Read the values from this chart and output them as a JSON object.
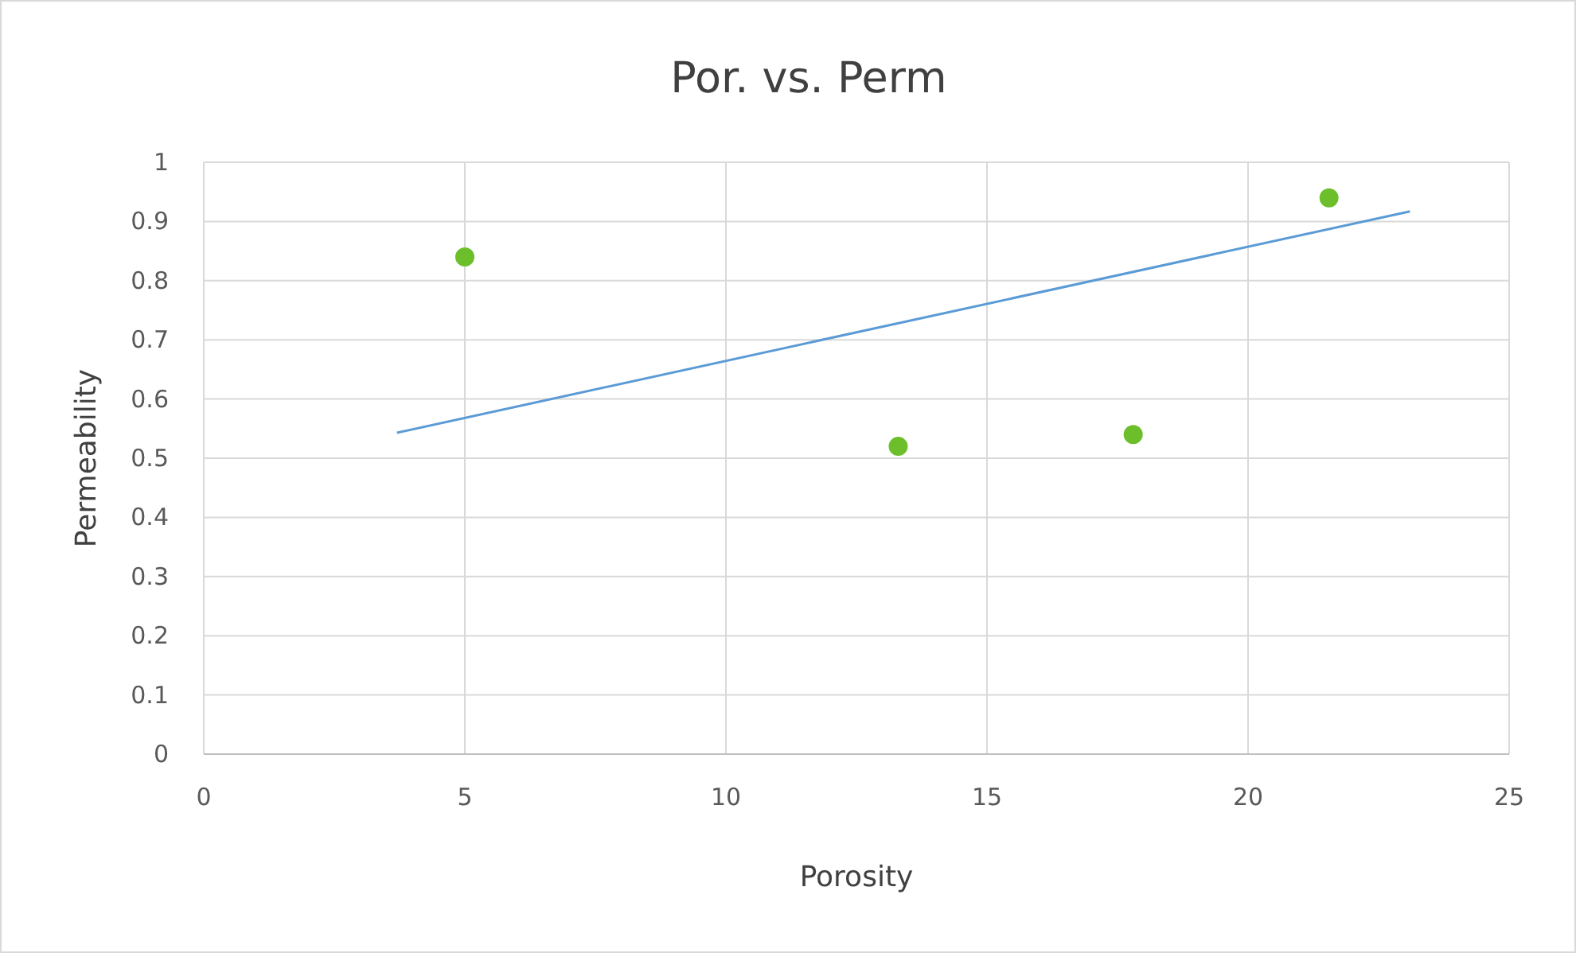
{
  "chart_data": {
    "type": "scatter",
    "title": "Por. vs. Perm",
    "xlabel": "Porosity",
    "ylabel": "Permeability",
    "xlim": [
      0,
      25
    ],
    "xticks": [
      0,
      5,
      10,
      15,
      20,
      25
    ],
    "ylim": [
      0,
      1
    ],
    "yticks": [
      0,
      {
        "value": 0.1,
        "label": "0.1"
      },
      {
        "value": 0.2,
        "label": "0.2"
      },
      {
        "value": 0.3,
        "label": "0.3"
      },
      {
        "value": 0.4,
        "label": "0.4"
      },
      {
        "value": 0.5,
        "label": "0.5"
      },
      {
        "value": 0.6,
        "label": "0.6"
      },
      {
        "value": 0.7,
        "label": "0.7"
      },
      {
        "value": 0.8,
        "label": "0.8"
      },
      {
        "value": 0.9,
        "label": "0.9"
      },
      1
    ],
    "grid": true,
    "marker": "circle",
    "series": [
      {
        "color": "#6cbf2a",
        "x": [
          5,
          13.3,
          17.8,
          21.55
        ],
        "values": [
          0.84,
          0.52,
          0.54,
          0.94
        ]
      },
      {
        "type": "line",
        "color": "#5b9bd5",
        "x": [
          3.7,
          23.1
        ],
        "values": [
          0.543,
          0.917
        ],
        "marker": "none",
        "line_style": "solid"
      }
    ]
  }
}
